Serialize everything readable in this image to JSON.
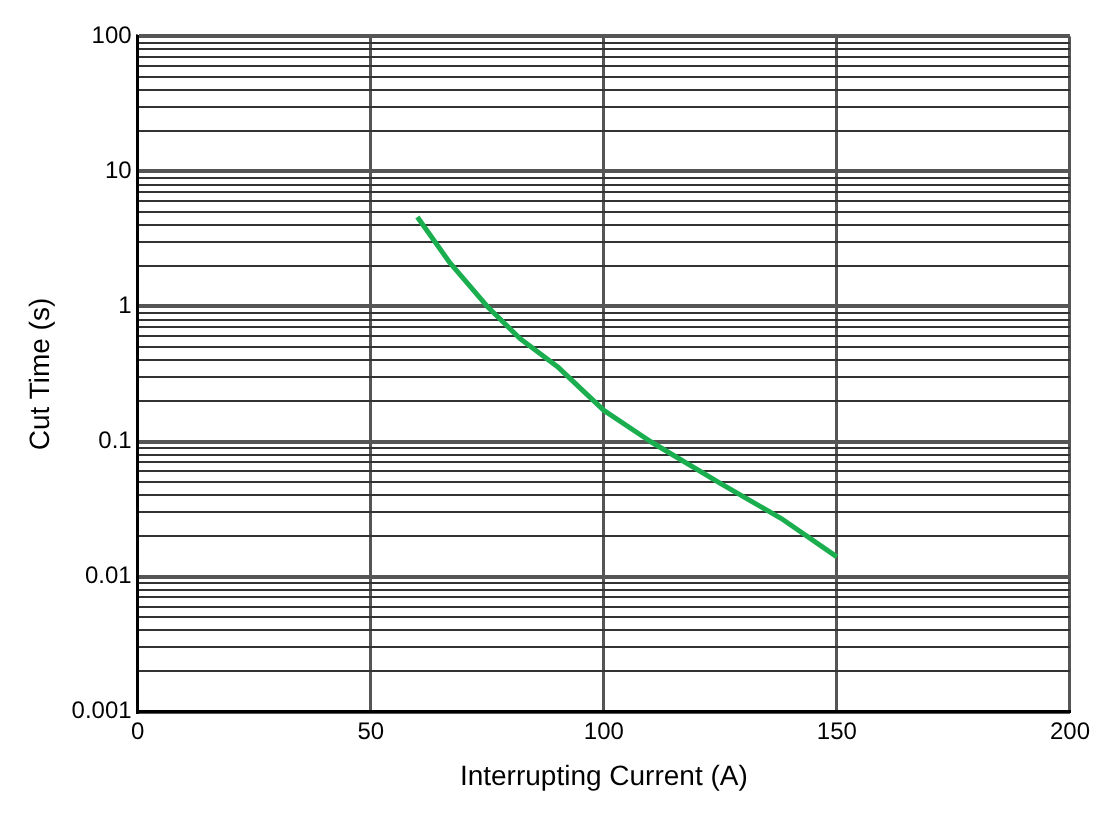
{
  "chart_data": {
    "type": "line",
    "xlabel": "Interrupting Current (A)",
    "ylabel": "Cut Time (s)",
    "log": "y",
    "xlim": [
      0,
      200
    ],
    "xticks": [
      0,
      50,
      100,
      150,
      200
    ],
    "ylim": [
      0.001,
      100
    ],
    "yticks": [
      0.001,
      0.01,
      0.1,
      1,
      10,
      100
    ],
    "grid": true,
    "legend": false,
    "marker": "none",
    "line_style": "solid",
    "series": [
      {
        "color": "#1aae4f",
        "x": [
          60,
          67,
          75,
          82,
          90,
          100,
          110,
          125,
          138,
          150
        ],
        "values": [
          4.6,
          2.1,
          1.0,
          0.58,
          0.36,
          0.17,
          0.1,
          0.049,
          0.027,
          0.014
        ]
      }
    ]
  }
}
